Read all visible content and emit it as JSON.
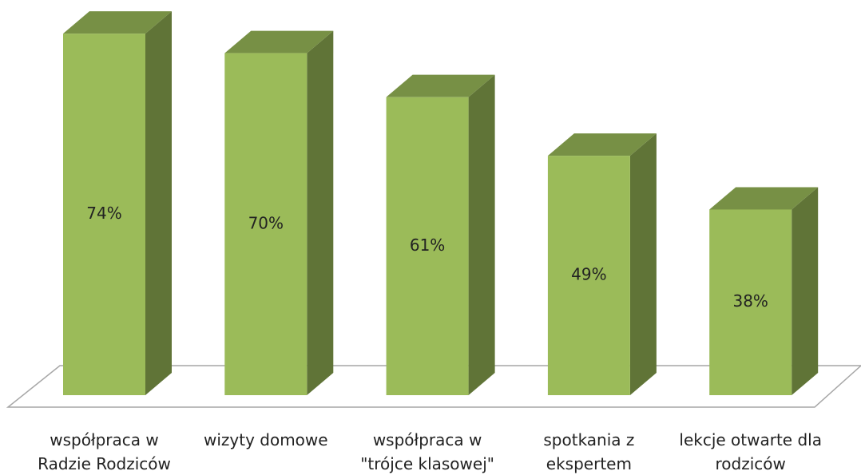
{
  "chart_data": {
    "type": "bar3d",
    "categories": [
      "współpraca w Radzie Rodziców",
      "wizyty domowe",
      "współpraca w \"trójce klasowej\"",
      "spotkania z ekspertem",
      "lekcje otwarte dla rodziców"
    ],
    "values": [
      74,
      70,
      61,
      49,
      38
    ],
    "value_labels": [
      "74%",
      "70%",
      "61%",
      "49%",
      "38%"
    ],
    "color": "#9bbb59"
  }
}
